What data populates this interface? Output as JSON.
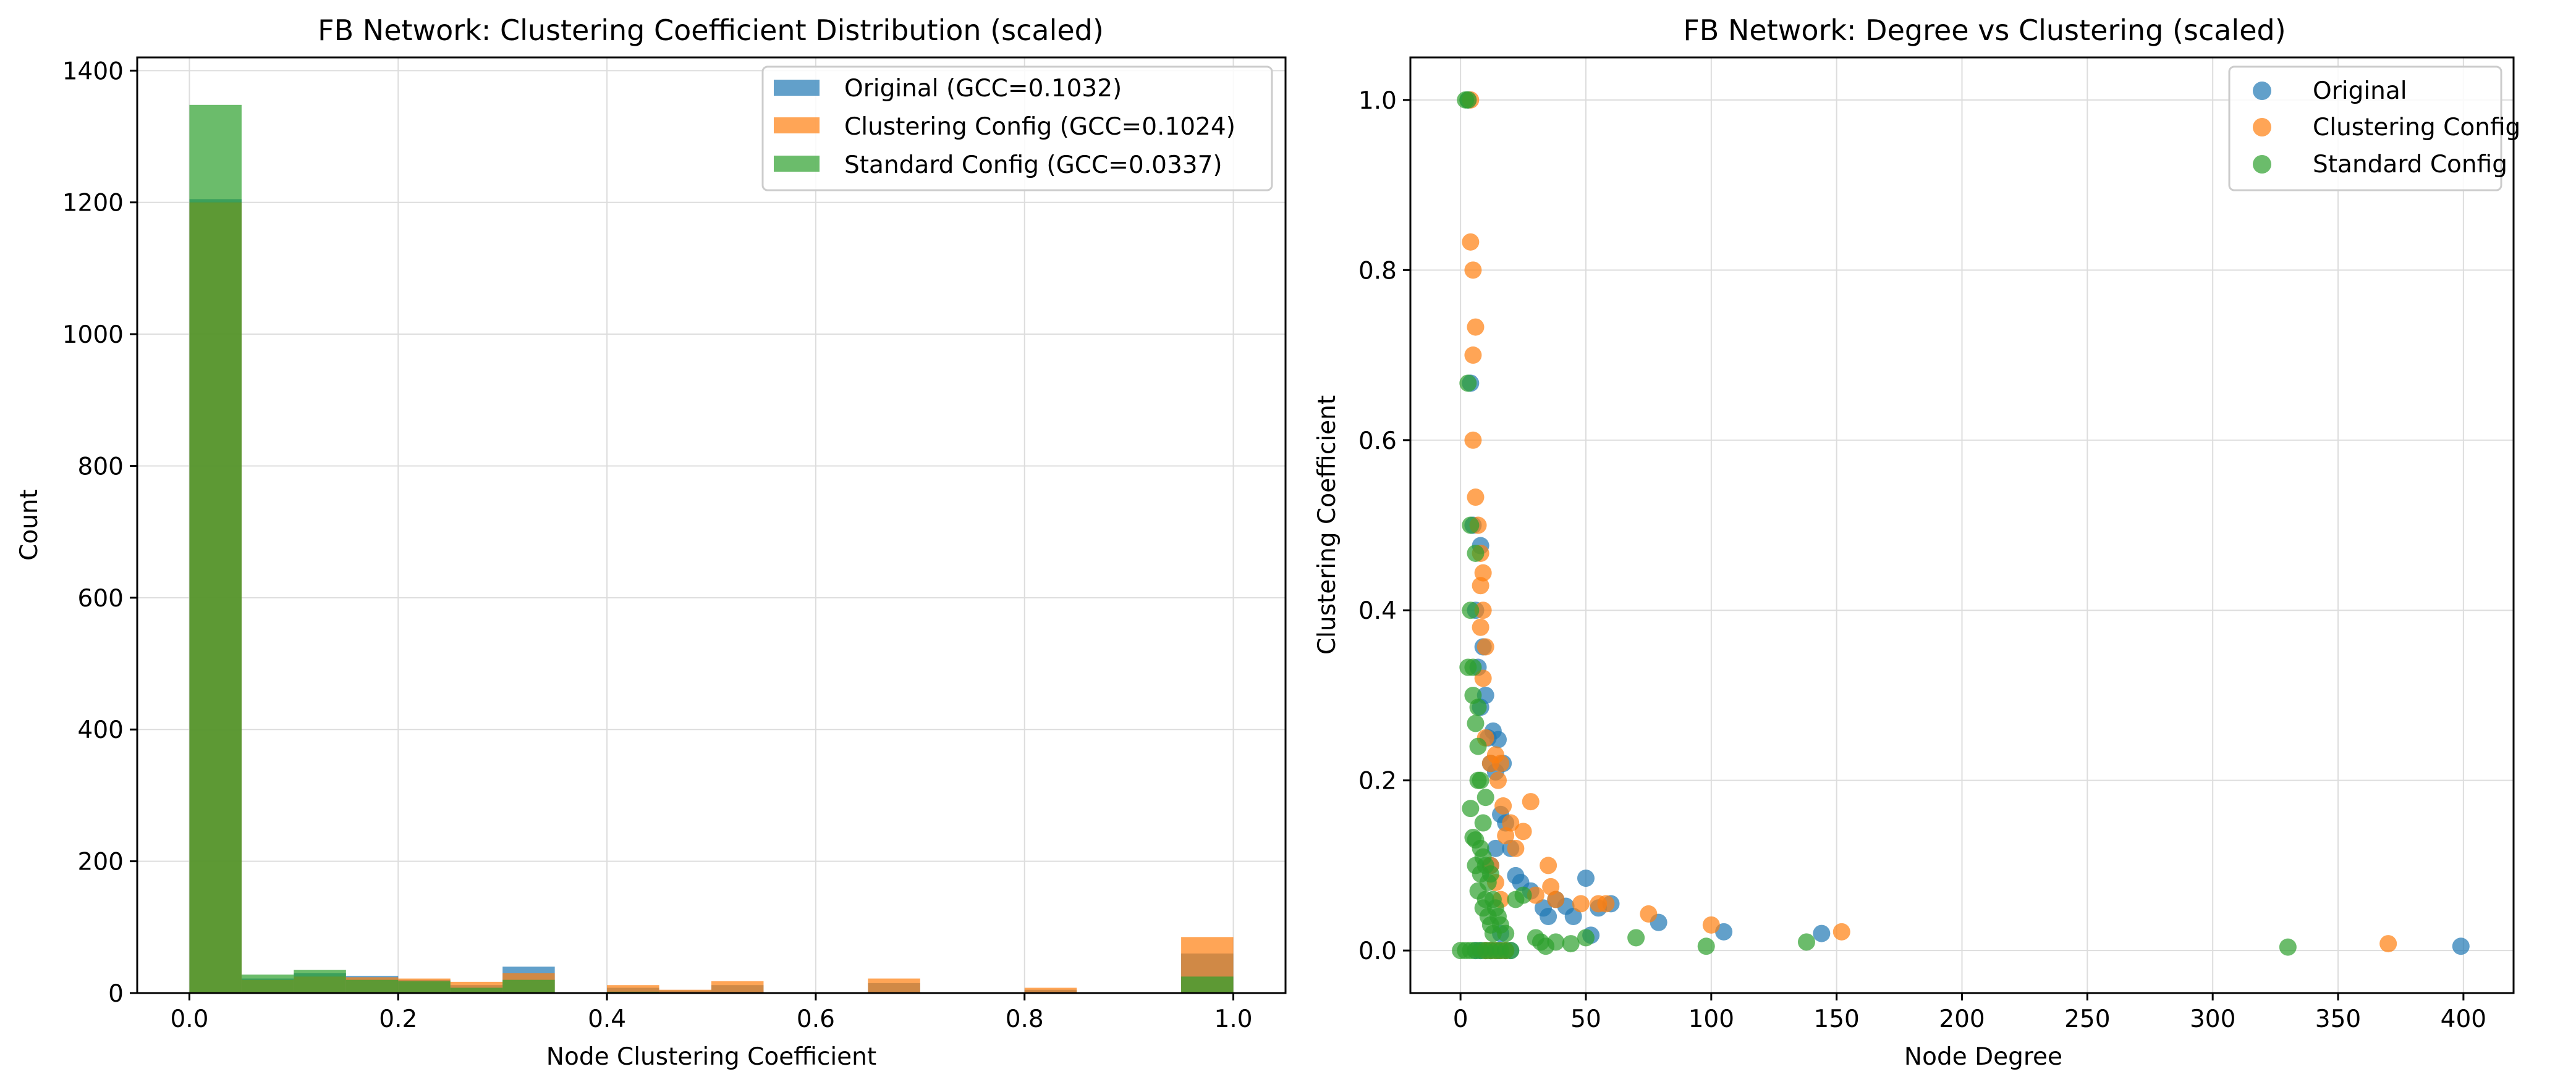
{
  "colors": {
    "original": "#1f77b4",
    "clustering_config": "#ff7f0e",
    "standard_config": "#2ca02c",
    "grid": "#dddddd",
    "axis": "#000000"
  },
  "chart_data": [
    {
      "type": "bar",
      "subtype": "overlaid-histogram",
      "title": "FB Network: Clustering Coefficient Distribution (scaled)",
      "xlabel": "Node Clustering Coefficient",
      "ylabel": "Count",
      "xlim": [
        -0.05,
        1.05
      ],
      "ylim": [
        0,
        1420
      ],
      "xticks": [
        0.0,
        0.2,
        0.4,
        0.6,
        0.8,
        1.0
      ],
      "xtick_labels": [
        "0.0",
        "0.2",
        "0.4",
        "0.6",
        "0.8",
        "1.0"
      ],
      "yticks": [
        0,
        200,
        400,
        600,
        800,
        1000,
        1200,
        1400
      ],
      "ytick_labels": [
        "0",
        "200",
        "400",
        "600",
        "800",
        "1000",
        "1200",
        "1400"
      ],
      "grid": true,
      "legend_position": "upper right",
      "bin_edges": [
        0.0,
        0.05,
        0.1,
        0.15,
        0.2,
        0.25,
        0.3,
        0.35,
        0.4,
        0.45,
        0.5,
        0.55,
        0.6,
        0.65,
        0.7,
        0.75,
        0.8,
        0.85,
        0.9,
        0.95,
        1.0
      ],
      "series": [
        {
          "name": "Original (GCC=0.1032)",
          "color_key": "original",
          "values": [
            1205,
            22,
            30,
            26,
            20,
            12,
            40,
            0,
            8,
            4,
            12,
            0,
            0,
            15,
            0,
            0,
            5,
            0,
            0,
            60
          ]
        },
        {
          "name": "Clustering Config (GCC=0.1024)",
          "color_key": "clustering_config",
          "values": [
            1200,
            20,
            25,
            24,
            22,
            17,
            30,
            0,
            12,
            5,
            18,
            0,
            0,
            22,
            0,
            0,
            8,
            0,
            0,
            85
          ]
        },
        {
          "name": "Standard Config (GCC=0.0337)",
          "color_key": "standard_config",
          "values": [
            1348,
            28,
            35,
            20,
            18,
            8,
            20,
            0,
            2,
            0,
            0,
            0,
            0,
            0,
            0,
            0,
            0,
            0,
            0,
            25
          ]
        }
      ]
    },
    {
      "type": "scatter",
      "title": "FB Network: Degree vs Clustering (scaled)",
      "xlabel": "Node Degree",
      "ylabel": "Clustering Coefficient",
      "xlim": [
        -20,
        420
      ],
      "ylim": [
        -0.05,
        1.05
      ],
      "xticks": [
        0,
        50,
        100,
        150,
        200,
        250,
        300,
        350,
        400
      ],
      "xtick_labels": [
        "0",
        "50",
        "100",
        "150",
        "200",
        "250",
        "300",
        "350",
        "400"
      ],
      "yticks": [
        0.0,
        0.2,
        0.4,
        0.6,
        0.8,
        1.0
      ],
      "ytick_labels": [
        "0.0",
        "0.2",
        "0.4",
        "0.6",
        "0.8",
        "1.0"
      ],
      "grid": true,
      "legend_position": "upper right",
      "series": [
        {
          "name": "Original",
          "color_key": "original",
          "points": [
            [
              3,
              1.0
            ],
            [
              4,
              0.667
            ],
            [
              5,
              0.5
            ],
            [
              6,
              0.4
            ],
            [
              7,
              0.333
            ],
            [
              8,
              0.476
            ],
            [
              8,
              0.286
            ],
            [
              9,
              0.357
            ],
            [
              10,
              0.3
            ],
            [
              11,
              0.25
            ],
            [
              12,
              0.22
            ],
            [
              13,
              0.258
            ],
            [
              14,
              0.21
            ],
            [
              15,
              0.248
            ],
            [
              16,
              0.16
            ],
            [
              17,
              0.22
            ],
            [
              18,
              0.15
            ],
            [
              20,
              0.12
            ],
            [
              22,
              0.088
            ],
            [
              24,
              0.08
            ],
            [
              28,
              0.07
            ],
            [
              33,
              0.05
            ],
            [
              35,
              0.04
            ],
            [
              38,
              0.06
            ],
            [
              42,
              0.052
            ],
            [
              45,
              0.04
            ],
            [
              50,
              0.085
            ],
            [
              52,
              0.018
            ],
            [
              55,
              0.05
            ],
            [
              60,
              0.055
            ],
            [
              79,
              0.033
            ],
            [
              105,
              0.022
            ],
            [
              144,
              0.02
            ],
            [
              399,
              0.005
            ],
            [
              6,
              0.0
            ],
            [
              8,
              0.0
            ],
            [
              10,
              0.0
            ],
            [
              12,
              0.0
            ],
            [
              15,
              0.0
            ],
            [
              18,
              0.0
            ],
            [
              20,
              0.0
            ],
            [
              12,
              0.1
            ],
            [
              14,
              0.12
            ],
            [
              16,
              0.02
            ]
          ]
        },
        {
          "name": "Clustering Config",
          "color_key": "clustering_config",
          "points": [
            [
              4,
              1.0
            ],
            [
              4,
              0.833
            ],
            [
              5,
              0.8
            ],
            [
              5,
              0.7
            ],
            [
              6,
              0.733
            ],
            [
              5,
              0.6
            ],
            [
              6,
              0.533
            ],
            [
              7,
              0.5
            ],
            [
              8,
              0.467
            ],
            [
              8,
              0.429
            ],
            [
              9,
              0.444
            ],
            [
              8,
              0.38
            ],
            [
              9,
              0.4
            ],
            [
              10,
              0.357
            ],
            [
              9,
              0.32
            ],
            [
              10,
              0.25
            ],
            [
              12,
              0.22
            ],
            [
              14,
              0.23
            ],
            [
              15,
              0.2
            ],
            [
              16,
              0.22
            ],
            [
              17,
              0.17
            ],
            [
              18,
              0.135
            ],
            [
              20,
              0.15
            ],
            [
              22,
              0.12
            ],
            [
              25,
              0.14
            ],
            [
              28,
              0.175
            ],
            [
              30,
              0.065
            ],
            [
              35,
              0.1
            ],
            [
              36,
              0.075
            ],
            [
              38,
              0.06
            ],
            [
              48,
              0.055
            ],
            [
              55,
              0.055
            ],
            [
              58,
              0.055
            ],
            [
              75,
              0.043
            ],
            [
              100,
              0.03
            ],
            [
              152,
              0.022
            ],
            [
              370,
              0.008
            ],
            [
              10,
              0.0
            ],
            [
              12,
              0.0
            ],
            [
              14,
              0.0
            ],
            [
              16,
              0.0
            ],
            [
              18,
              0.0
            ],
            [
              12,
              0.1
            ],
            [
              14,
              0.08
            ],
            [
              16,
              0.06
            ]
          ]
        },
        {
          "name": "Standard Config",
          "color_key": "standard_config",
          "points": [
            [
              2,
              1.0
            ],
            [
              3,
              1.0
            ],
            [
              3,
              0.667
            ],
            [
              4,
              0.5
            ],
            [
              4,
              0.4
            ],
            [
              5,
              0.333
            ],
            [
              3,
              0.333
            ],
            [
              6,
              0.467
            ],
            [
              5,
              0.3
            ],
            [
              6,
              0.267
            ],
            [
              7,
              0.286
            ],
            [
              7,
              0.24
            ],
            [
              7,
              0.2
            ],
            [
              8,
              0.2
            ],
            [
              9,
              0.15
            ],
            [
              10,
              0.18
            ],
            [
              4,
              0.167
            ],
            [
              5,
              0.133
            ],
            [
              6,
              0.1
            ],
            [
              8,
              0.12
            ],
            [
              10,
              0.1
            ],
            [
              11,
              0.08
            ],
            [
              12,
              0.09
            ],
            [
              13,
              0.06
            ],
            [
              14,
              0.05
            ],
            [
              15,
              0.04
            ],
            [
              16,
              0.03
            ],
            [
              18,
              0.02
            ],
            [
              22,
              0.06
            ],
            [
              25,
              0.065
            ],
            [
              30,
              0.015
            ],
            [
              32,
              0.01
            ],
            [
              34,
              0.005
            ],
            [
              38,
              0.01
            ],
            [
              44,
              0.008
            ],
            [
              50,
              0.015
            ],
            [
              70,
              0.015
            ],
            [
              98,
              0.005
            ],
            [
              138,
              0.01
            ],
            [
              330,
              0.004
            ],
            [
              0,
              0.0
            ],
            [
              2,
              0.0
            ],
            [
              4,
              0.0
            ],
            [
              6,
              0.0
            ],
            [
              8,
              0.0
            ],
            [
              10,
              0.0
            ],
            [
              12,
              0.0
            ],
            [
              14,
              0.0
            ],
            [
              16,
              0.0
            ],
            [
              18,
              0.0
            ],
            [
              20,
              0.0
            ],
            [
              9,
              0.05
            ],
            [
              10,
              0.06
            ],
            [
              11,
              0.04
            ],
            [
              12,
              0.03
            ],
            [
              13,
              0.02
            ],
            [
              7,
              0.07
            ],
            [
              8,
              0.09
            ],
            [
              9,
              0.11
            ],
            [
              6,
              0.13
            ]
          ]
        }
      ]
    }
  ]
}
